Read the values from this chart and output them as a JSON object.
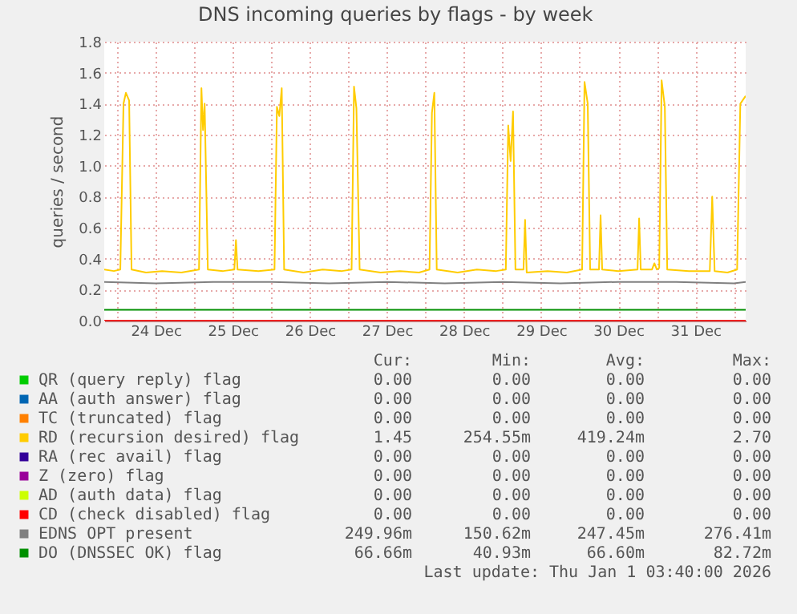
{
  "chart_data": {
    "type": "line",
    "title": "DNS incoming queries by flags - by week",
    "ylabel": "queries / second",
    "xlim": [
      "2025-12-23T20:00",
      "2026-01-01T03:40"
    ],
    "xticks": [
      {
        "value": "2025-12-24T00:00",
        "label": null
      },
      {
        "value": "2025-12-24T12:00",
        "label": "24 Dec"
      },
      {
        "value": "2025-12-25T00:00",
        "label": null
      },
      {
        "value": "2025-12-25T12:00",
        "label": "25 Dec"
      },
      {
        "value": "2025-12-26T00:00",
        "label": null
      },
      {
        "value": "2025-12-26T12:00",
        "label": "26 Dec"
      },
      {
        "value": "2025-12-27T00:00",
        "label": null
      },
      {
        "value": "2025-12-27T12:00",
        "label": "27 Dec"
      },
      {
        "value": "2025-12-28T00:00",
        "label": null
      },
      {
        "value": "2025-12-28T12:00",
        "label": "28 Dec"
      },
      {
        "value": "2025-12-29T00:00",
        "label": null
      },
      {
        "value": "2025-12-29T12:00",
        "label": "29 Dec"
      },
      {
        "value": "2025-12-30T00:00",
        "label": null
      },
      {
        "value": "2025-12-30T12:00",
        "label": "30 Dec"
      },
      {
        "value": "2025-12-31T00:00",
        "label": null
      },
      {
        "value": "2025-12-31T12:00",
        "label": "31 Dec"
      },
      {
        "value": "2026-01-01T00:00",
        "label": null
      }
    ],
    "ylim": [
      0,
      1.8
    ],
    "yticks": [
      {
        "value": 0,
        "label": "0.0"
      },
      0.2,
      0.4,
      0.6,
      0.8,
      {
        "value": 1,
        "label": "1.0"
      },
      1.2,
      1.4,
      1.6,
      1.8
    ],
    "grid": true,
    "legend": "bottom",
    "series": [
      {
        "name": "QR (query reply) flag",
        "color": "#00cc00",
        "values": [
          null
        ]
      },
      {
        "name": "AA (auth answer) flag",
        "color": "#0066b3",
        "values": [
          null
        ]
      },
      {
        "name": "TC (truncated) flag",
        "color": "#ff8000",
        "values": [
          null
        ]
      },
      {
        "name": "RD (recursion desired) flag",
        "color": "#ffcc00",
        "x": [
          "2025-12-23T20:00",
          "2025-12-23T23:00",
          "2025-12-24T01:00",
          "2025-12-24T02:00",
          "2025-12-24T02:45",
          "2025-12-24T03:45",
          "2025-12-24T04:30",
          "2025-12-24T09:00",
          "2025-12-24T14:00",
          "2025-12-24T20:00",
          "2025-12-25T01:30",
          "2025-12-25T02:15",
          "2025-12-25T02:45",
          "2025-12-25T03:15",
          "2025-12-25T04:15",
          "2025-12-25T09:00",
          "2025-12-25T12:30",
          "2025-12-25T13:00",
          "2025-12-25T13:30",
          "2025-12-25T20:00",
          "2025-12-26T01:00",
          "2025-12-26T01:45",
          "2025-12-26T02:30",
          "2025-12-26T03:15",
          "2025-12-26T04:00",
          "2025-12-26T10:00",
          "2025-12-26T16:00",
          "2025-12-26T22:00",
          "2025-12-27T01:00",
          "2025-12-27T01:45",
          "2025-12-27T02:30",
          "2025-12-27T03:30",
          "2025-12-27T10:00",
          "2025-12-27T16:00",
          "2025-12-27T22:00",
          "2025-12-28T01:15",
          "2025-12-28T02:00",
          "2025-12-28T02:45",
          "2025-12-28T03:30",
          "2025-12-28T10:00",
          "2025-12-28T16:00",
          "2025-12-28T22:00",
          "2025-12-29T01:00",
          "2025-12-29T01:45",
          "2025-12-29T02:30",
          "2025-12-29T03:15",
          "2025-12-29T04:00",
          "2025-12-29T06:30",
          "2025-12-29T07:00",
          "2025-12-29T07:30",
          "2025-12-29T14:00",
          "2025-12-29T20:00",
          "2025-12-30T00:45",
          "2025-12-30T01:30",
          "2025-12-30T02:30",
          "2025-12-30T03:15",
          "2025-12-30T06:00",
          "2025-12-30T06:30",
          "2025-12-30T07:00",
          "2025-12-30T12:00",
          "2025-12-30T18:00",
          "2025-12-30T18:30",
          "2025-12-30T19:00",
          "2025-12-30T22:30",
          "2025-12-30T23:15",
          "2025-12-31T00:00",
          "2025-12-31T00:45",
          "2025-12-31T01:30",
          "2025-12-31T02:30",
          "2025-12-31T03:15",
          "2025-12-31T10:00",
          "2025-12-31T16:30",
          "2025-12-31T17:15",
          "2025-12-31T18:00",
          "2025-12-31T22:00",
          "2026-01-01T01:00",
          "2026-01-01T02:00",
          "2026-01-01T03:40"
        ],
        "values": [
          0.33,
          0.32,
          0.33,
          1.4,
          1.47,
          1.42,
          0.33,
          0.31,
          0.32,
          0.31,
          0.33,
          1.5,
          1.23,
          1.4,
          0.33,
          0.32,
          0.33,
          0.52,
          0.33,
          0.32,
          0.33,
          1.38,
          1.32,
          1.5,
          0.33,
          0.31,
          0.33,
          0.32,
          0.33,
          1.51,
          1.37,
          0.33,
          0.31,
          0.32,
          0.31,
          0.33,
          1.34,
          1.47,
          0.33,
          0.31,
          0.33,
          0.32,
          0.33,
          1.26,
          1.03,
          1.35,
          0.33,
          0.33,
          0.65,
          0.31,
          0.32,
          0.31,
          0.33,
          1.54,
          1.4,
          0.33,
          0.33,
          0.68,
          0.33,
          0.32,
          0.33,
          0.66,
          0.33,
          0.33,
          0.37,
          0.33,
          0.34,
          1.55,
          1.38,
          0.33,
          0.32,
          0.32,
          0.8,
          0.32,
          0.31,
          0.33,
          1.4,
          1.45
        ]
      },
      {
        "name": "RA (rec avail) flag",
        "color": "#330099",
        "values": [
          null
        ]
      },
      {
        "name": "Z (zero) flag",
        "color": "#990099",
        "values": [
          null
        ]
      },
      {
        "name": "AD (auth data) flag",
        "color": "#ccff00",
        "values": [
          null
        ]
      },
      {
        "name": "CD (check disabled) flag",
        "color": "#ff0000",
        "x": [
          "2025-12-23T20:00",
          "2026-01-01T03:40"
        ],
        "values": [
          0,
          0
        ]
      },
      {
        "name": "EDNS OPT present",
        "color": "#808080",
        "x": [
          "2025-12-23T20:00",
          "2025-12-24T12:00",
          "2025-12-25T06:00",
          "2025-12-26T00:00",
          "2025-12-26T18:00",
          "2025-12-27T12:00",
          "2025-12-28T06:00",
          "2025-12-29T00:00",
          "2025-12-29T18:00",
          "2025-12-30T12:00",
          "2025-12-31T06:00",
          "2026-01-01T00:00",
          "2026-01-01T03:40"
        ],
        "values": [
          0.25,
          0.24,
          0.25,
          0.25,
          0.24,
          0.25,
          0.24,
          0.25,
          0.24,
          0.25,
          0.25,
          0.24,
          0.25
        ]
      },
      {
        "name": "DO (DNSSEC OK) flag",
        "color": "#008f00",
        "x": [
          "2025-12-23T20:00",
          "2025-12-25T00:00",
          "2025-12-26T12:00",
          "2025-12-28T00:00",
          "2025-12-29T12:00",
          "2025-12-31T00:00",
          "2026-01-01T03:40"
        ],
        "values": [
          0.07,
          0.07,
          0.07,
          0.07,
          0.07,
          0.07,
          0.07
        ]
      }
    ],
    "annotations": [
      "Cur:",
      "Min:",
      "Avg:",
      "Max:",
      "0.00",
      "0.00",
      "0.00",
      "0.00",
      "0.00",
      "0.00",
      "0.00",
      "0.00",
      "0.00",
      "0.00",
      "0.00",
      "0.00",
      "1.45",
      "254.55m",
      "419.24m",
      "2.70",
      "0.00",
      "0.00",
      "0.00",
      "0.00",
      "0.00",
      "0.00",
      "0.00",
      "0.00",
      "0.00",
      "0.00",
      "0.00",
      "0.00",
      "0.00",
      "0.00",
      "0.00",
      "0.00",
      "249.96m",
      "150.62m",
      "247.45m",
      "276.41m",
      "66.66m",
      "40.93m",
      "66.60m",
      "82.72m",
      "Last update: Thu Jan  1 03:40:00 2026"
    ]
  }
}
